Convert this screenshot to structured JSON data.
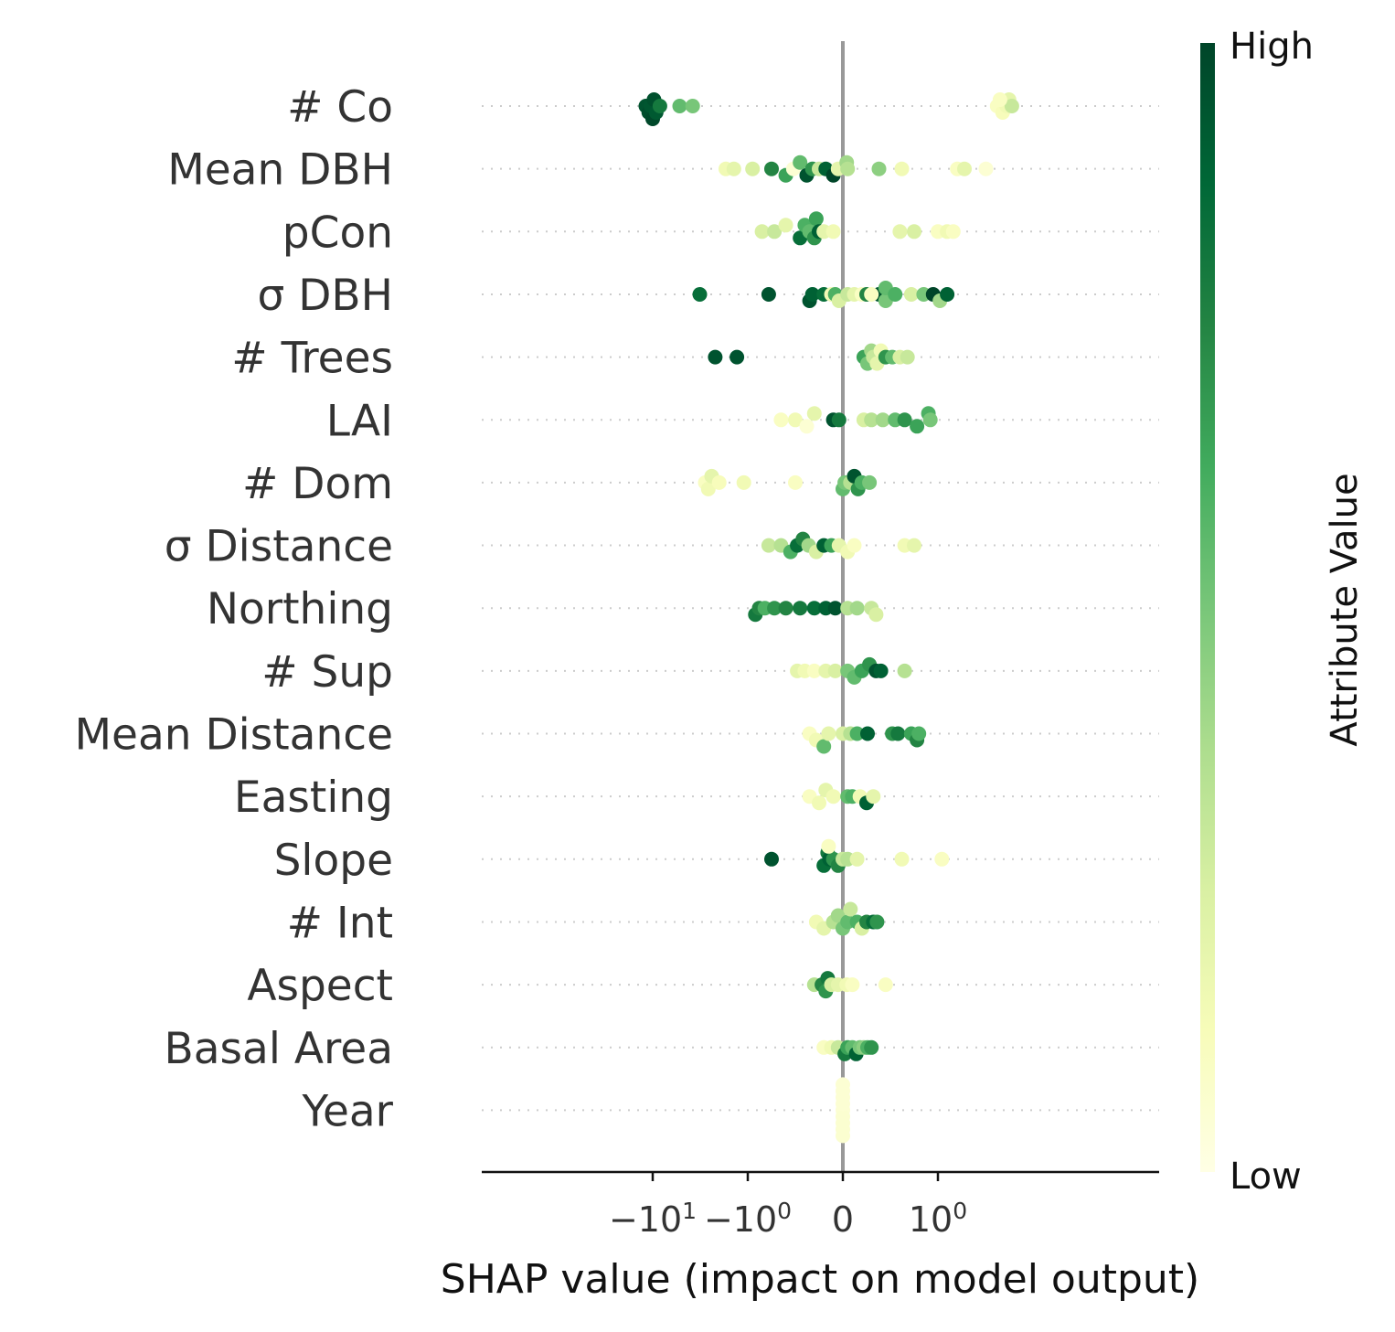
{
  "chart_data": {
    "type": "scatter",
    "subtype": "shap-beeswarm",
    "xlabel": "SHAP value (impact on model output)",
    "x_scale": "symlog",
    "xlim": [
      -35,
      10
    ],
    "x_ticks": [
      {
        "value": -10,
        "label_base": "−10",
        "label_exp": "1"
      },
      {
        "value": -1,
        "label_base": "−10",
        "label_exp": "0"
      },
      {
        "value": 0,
        "label_base": "0",
        "label_exp": ""
      },
      {
        "value": 1,
        "label_base": "10",
        "label_exp": "0"
      }
    ],
    "zero_line": true,
    "colorbar": {
      "title": "Attribute Value",
      "high_label": "High",
      "low_label": "Low",
      "colors": [
        "#ffffe5",
        "#f7fcb9",
        "#d9f0a3",
        "#addd8e",
        "#78c679",
        "#41ab5d",
        "#238443",
        "#006837",
        "#004529"
      ]
    },
    "features": [
      {
        "name": "# Co",
        "points": [
          [
            -11.8,
            0.95,
            0
          ],
          [
            -11,
            0.97,
            1
          ],
          [
            -10.4,
            0.94,
            0
          ],
          [
            -10,
            0.99,
            2
          ],
          [
            -9.7,
            0.96,
            -1
          ],
          [
            -9.2,
            0.93,
            1
          ],
          [
            -8.4,
            0.8,
            0
          ],
          [
            -5.2,
            0.55,
            0
          ],
          [
            -3.8,
            0.5,
            0
          ],
          [
            4.2,
            0.1,
            0
          ],
          [
            4.8,
            0.12,
            1
          ],
          [
            5.3,
            0.15,
            0
          ],
          [
            5.6,
            0.2,
            -1
          ],
          [
            6.0,
            0.3,
            0
          ],
          [
            4.5,
            0.1,
            -1
          ]
        ]
      },
      {
        "name": "Mean DBH",
        "points": [
          [
            -1.7,
            0.15,
            0
          ],
          [
            -1.4,
            0.2,
            0
          ],
          [
            -0.95,
            0.25,
            0
          ],
          [
            -0.75,
            0.75,
            0
          ],
          [
            -0.6,
            0.65,
            1
          ],
          [
            -0.52,
            0.05,
            0
          ],
          [
            -0.45,
            0.55,
            -1
          ],
          [
            -0.38,
            0.95,
            1
          ],
          [
            -0.32,
            0.7,
            0
          ],
          [
            -0.25,
            0.3,
            0
          ],
          [
            -0.18,
            0.9,
            0
          ],
          [
            -0.1,
            1.0,
            1
          ],
          [
            -0.05,
            0.2,
            0
          ],
          [
            0.04,
            0.4,
            -1
          ],
          [
            0.05,
            0.35,
            0
          ],
          [
            0.38,
            0.45,
            0
          ],
          [
            0.62,
            0.15,
            0
          ],
          [
            1.6,
            0.1,
            0
          ],
          [
            1.9,
            0.2,
            0
          ],
          [
            3.2,
            0.05,
            0
          ]
        ]
      },
      {
        "name": "pCon",
        "points": [
          [
            -0.85,
            0.25,
            0
          ],
          [
            -0.72,
            0.3,
            0
          ],
          [
            -0.6,
            0.2,
            -1
          ],
          [
            -0.45,
            0.85,
            1
          ],
          [
            -0.4,
            0.6,
            -1
          ],
          [
            -0.35,
            0.55,
            0
          ],
          [
            -0.3,
            0.7,
            1
          ],
          [
            -0.28,
            0.65,
            -2
          ],
          [
            -0.25,
            0.9,
            0
          ],
          [
            -0.2,
            0.2,
            0
          ],
          [
            -0.1,
            0.15,
            0
          ],
          [
            0.6,
            0.2,
            0
          ],
          [
            0.75,
            0.25,
            0
          ],
          [
            1.0,
            0.1,
            0
          ],
          [
            1.25,
            0.15,
            0
          ],
          [
            1.45,
            0.1,
            0
          ]
        ]
      },
      {
        "name": "σ DBH",
        "points": [
          [
            -3.2,
            0.85,
            0
          ],
          [
            -0.78,
            0.95,
            0
          ],
          [
            -0.35,
            0.95,
            1
          ],
          [
            -0.32,
            0.9,
            0
          ],
          [
            -0.2,
            0.85,
            0
          ],
          [
            -0.12,
            0.15,
            0
          ],
          [
            -0.08,
            0.6,
            0
          ],
          [
            -0.04,
            0.25,
            1
          ],
          [
            0.05,
            0.3,
            0
          ],
          [
            0.12,
            0.2,
            0
          ],
          [
            0.2,
            0.1,
            0
          ],
          [
            0.25,
            0.75,
            0
          ],
          [
            0.38,
            0.95,
            0
          ],
          [
            0.45,
            0.5,
            1
          ],
          [
            0.45,
            0.55,
            -1
          ],
          [
            0.55,
            0.6,
            0
          ],
          [
            0.72,
            0.25,
            0
          ],
          [
            0.85,
            0.5,
            0
          ],
          [
            0.95,
            1.0,
            0
          ],
          [
            1.05,
            0.4,
            1
          ],
          [
            1.25,
            0.9,
            0
          ],
          [
            0.3,
            0.1,
            0
          ]
        ]
      },
      {
        "name": "# Trees",
        "points": [
          [
            -2.2,
            0.95,
            0
          ],
          [
            -1.3,
            0.95,
            0
          ],
          [
            0.22,
            0.65,
            0
          ],
          [
            0.26,
            0.5,
            1
          ],
          [
            0.3,
            0.4,
            -1
          ],
          [
            0.32,
            0.3,
            0
          ],
          [
            0.36,
            0.2,
            1
          ],
          [
            0.4,
            0.15,
            -1
          ],
          [
            0.45,
            0.7,
            0
          ],
          [
            0.52,
            0.55,
            0
          ],
          [
            0.6,
            0.25,
            0
          ],
          [
            0.68,
            0.3,
            0
          ]
        ]
      },
      {
        "name": "LAI",
        "points": [
          [
            -0.65,
            0.1,
            0
          ],
          [
            -0.5,
            0.15,
            0
          ],
          [
            -0.38,
            0.05,
            1
          ],
          [
            -0.3,
            0.2,
            -1
          ],
          [
            -0.1,
            0.95,
            0
          ],
          [
            -0.04,
            0.8,
            0
          ],
          [
            0.22,
            0.25,
            0
          ],
          [
            0.3,
            0.35,
            0
          ],
          [
            0.42,
            0.4,
            0
          ],
          [
            0.55,
            0.55,
            0
          ],
          [
            0.65,
            0.7,
            0
          ],
          [
            0.78,
            0.65,
            1
          ],
          [
            0.9,
            0.6,
            -1
          ],
          [
            0.92,
            0.5,
            0
          ]
        ]
      },
      {
        "name": "# Dom",
        "points": [
          [
            -2.8,
            0.1,
            0
          ],
          [
            -2.6,
            0.15,
            1
          ],
          [
            -2.4,
            0.2,
            -1
          ],
          [
            -2.0,
            0.12,
            0
          ],
          [
            -1.1,
            0.15,
            0
          ],
          [
            -0.5,
            0.1,
            0
          ],
          [
            0.0,
            0.55,
            1
          ],
          [
            0.02,
            0.5,
            0
          ],
          [
            0.08,
            0.35,
            0
          ],
          [
            0.12,
            0.95,
            -1
          ],
          [
            0.16,
            0.7,
            1
          ],
          [
            0.2,
            0.6,
            0
          ],
          [
            0.28,
            0.5,
            0
          ]
        ]
      },
      {
        "name": "σ Distance",
        "points": [
          [
            -0.78,
            0.3,
            0
          ],
          [
            -0.65,
            0.35,
            0
          ],
          [
            -0.55,
            0.6,
            1
          ],
          [
            -0.48,
            0.85,
            0
          ],
          [
            -0.42,
            0.75,
            -1
          ],
          [
            -0.36,
            0.4,
            0
          ],
          [
            -0.28,
            0.25,
            1
          ],
          [
            -0.2,
            0.9,
            0
          ],
          [
            -0.12,
            0.65,
            0
          ],
          [
            -0.04,
            0.2,
            0
          ],
          [
            0.05,
            0.15,
            1
          ],
          [
            0.12,
            0.1,
            0
          ],
          [
            0.65,
            0.15,
            0
          ],
          [
            0.75,
            0.2,
            0
          ]
        ]
      },
      {
        "name": "Northing",
        "points": [
          [
            -0.92,
            0.8,
            1
          ],
          [
            -0.88,
            0.75,
            0
          ],
          [
            -0.82,
            0.6,
            0
          ],
          [
            -0.72,
            0.7,
            0
          ],
          [
            -0.6,
            0.75,
            0
          ],
          [
            -0.45,
            0.8,
            0
          ],
          [
            -0.3,
            0.85,
            0
          ],
          [
            -0.18,
            0.9,
            0
          ],
          [
            -0.08,
            0.95,
            0
          ],
          [
            0.05,
            0.35,
            0
          ],
          [
            0.15,
            0.4,
            0
          ],
          [
            0.3,
            0.3,
            0
          ],
          [
            0.35,
            0.25,
            1
          ]
        ]
      },
      {
        "name": "# Sup",
        "points": [
          [
            -0.48,
            0.2,
            0
          ],
          [
            -0.4,
            0.15,
            0
          ],
          [
            -0.3,
            0.1,
            0
          ],
          [
            -0.18,
            0.2,
            0
          ],
          [
            -0.08,
            0.25,
            0
          ],
          [
            0.05,
            0.5,
            0
          ],
          [
            0.12,
            0.55,
            1
          ],
          [
            0.2,
            0.65,
            0
          ],
          [
            0.28,
            0.7,
            -1
          ],
          [
            0.35,
            0.95,
            0
          ],
          [
            0.4,
            0.9,
            0
          ],
          [
            0.65,
            0.35,
            0
          ]
        ]
      },
      {
        "name": "Mean Distance",
        "points": [
          [
            -0.35,
            0.1,
            0
          ],
          [
            -0.28,
            0.15,
            1
          ],
          [
            -0.2,
            0.55,
            2
          ],
          [
            -0.15,
            0.2,
            0
          ],
          [
            0.0,
            0.25,
            0
          ],
          [
            0.08,
            0.35,
            0
          ],
          [
            0.15,
            0.6,
            0
          ],
          [
            0.26,
            0.9,
            0
          ],
          [
            0.52,
            0.7,
            0
          ],
          [
            0.58,
            0.8,
            0
          ],
          [
            0.72,
            0.65,
            0
          ],
          [
            0.78,
            0.75,
            1
          ],
          [
            0.8,
            0.6,
            0
          ]
        ]
      },
      {
        "name": "Easting",
        "points": [
          [
            -0.35,
            0.1,
            0
          ],
          [
            -0.25,
            0.15,
            1
          ],
          [
            -0.18,
            0.2,
            -1
          ],
          [
            -0.1,
            0.15,
            0
          ],
          [
            0.05,
            0.55,
            0
          ],
          [
            0.1,
            0.6,
            0
          ],
          [
            0.18,
            0.15,
            0
          ],
          [
            0.25,
            0.9,
            1
          ],
          [
            0.32,
            0.2,
            0
          ]
        ]
      },
      {
        "name": "Slope",
        "points": [
          [
            -0.75,
            0.95,
            0
          ],
          [
            -0.2,
            0.85,
            1
          ],
          [
            -0.16,
            0.8,
            -1
          ],
          [
            -0.14,
            0.9,
            0
          ],
          [
            -0.1,
            0.7,
            0
          ],
          [
            -0.05,
            0.75,
            1
          ],
          [
            0.0,
            0.3,
            0
          ],
          [
            0.05,
            0.35,
            0
          ],
          [
            0.15,
            0.2,
            0
          ],
          [
            0.62,
            0.15,
            0
          ],
          [
            1.1,
            0.1,
            0
          ],
          [
            -0.15,
            0.1,
            -2
          ]
        ]
      },
      {
        "name": "# Int",
        "points": [
          [
            -0.28,
            0.15,
            0
          ],
          [
            -0.2,
            0.2,
            1
          ],
          [
            -0.1,
            0.35,
            0
          ],
          [
            -0.05,
            0.4,
            -1
          ],
          [
            0.0,
            0.5,
            1
          ],
          [
            0.05,
            0.55,
            0
          ],
          [
            0.08,
            0.3,
            -2
          ],
          [
            0.15,
            0.6,
            0
          ],
          [
            0.2,
            0.25,
            1
          ],
          [
            0.25,
            0.75,
            0
          ],
          [
            0.32,
            0.85,
            0
          ],
          [
            0.36,
            0.7,
            0
          ]
        ]
      },
      {
        "name": "Aspect",
        "points": [
          [
            -0.3,
            0.35,
            0
          ],
          [
            -0.22,
            0.75,
            0
          ],
          [
            -0.18,
            0.7,
            1
          ],
          [
            -0.16,
            0.8,
            -1
          ],
          [
            -0.12,
            0.25,
            0
          ],
          [
            -0.05,
            0.2,
            0
          ],
          [
            0.04,
            0.15,
            0
          ],
          [
            0.1,
            0.1,
            0
          ],
          [
            0.45,
            0.1,
            0
          ]
        ]
      },
      {
        "name": "Basal Area",
        "points": [
          [
            -0.2,
            0.1,
            0
          ],
          [
            -0.12,
            0.15,
            0
          ],
          [
            -0.05,
            0.3,
            0
          ],
          [
            0.02,
            0.8,
            1
          ],
          [
            0.05,
            0.65,
            0
          ],
          [
            0.1,
            0.55,
            0
          ],
          [
            0.14,
            0.9,
            1
          ],
          [
            0.18,
            0.5,
            0
          ],
          [
            0.22,
            0.45,
            0
          ],
          [
            0.26,
            0.6,
            0
          ],
          [
            0.3,
            0.7,
            0
          ]
        ]
      },
      {
        "name": "Year",
        "points": [
          [
            0.0,
            0.05,
            0
          ],
          [
            0.0,
            0.06,
            1
          ],
          [
            0.0,
            0.05,
            -1
          ],
          [
            0.0,
            0.06,
            2
          ],
          [
            0.0,
            0.05,
            -2
          ],
          [
            0.0,
            0.06,
            3
          ],
          [
            0.0,
            0.05,
            -3
          ],
          [
            0.0,
            0.06,
            4
          ],
          [
            0.0,
            0.05,
            -4
          ]
        ]
      }
    ]
  }
}
